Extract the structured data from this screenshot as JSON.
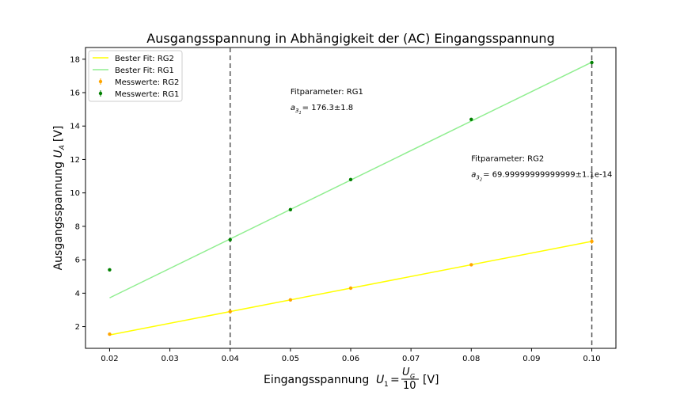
{
  "chart_data": {
    "type": "line",
    "title": "Ausgangsspannung in Abhängigkeit der (AC) Eingangsspannung",
    "xlabel": {
      "prefix": "Eingangsspannung",
      "var": "U",
      "var_sub": "1",
      "frac_num": "U",
      "frac_num_sub": "G",
      "frac_den": "10",
      "unit": "[V]"
    },
    "ylabel": {
      "prefix": "Ausgangsspannung",
      "var": "U",
      "var_sub": "A",
      "unit": "[V]"
    },
    "xlim": [
      0.016,
      0.104
    ],
    "ylim": [
      0.7,
      18.7
    ],
    "xticks": [
      0.02,
      0.03,
      0.04,
      0.05,
      0.06,
      0.07,
      0.08,
      0.09,
      0.1
    ],
    "xtick_labels": [
      "0.02",
      "0.03",
      "0.04",
      "0.05",
      "0.06",
      "0.07",
      "0.08",
      "0.09",
      "0.10"
    ],
    "yticks": [
      2,
      4,
      6,
      8,
      10,
      12,
      14,
      16,
      18
    ],
    "ytick_labels": [
      "2",
      "4",
      "6",
      "8",
      "10",
      "12",
      "14",
      "16",
      "18"
    ],
    "vlines": [
      0.04,
      0.1
    ],
    "grid": false,
    "legend_position": "top-left",
    "series": [
      {
        "name": "Bester Fit: RG2",
        "kind": "line",
        "color": "#ffff00",
        "x": [
          0.02,
          0.1
        ],
        "y": [
          1.5,
          7.1
        ]
      },
      {
        "name": "Bester Fit: RG1",
        "kind": "line",
        "color": "#90ee90",
        "x": [
          0.02,
          0.1
        ],
        "y": [
          3.72,
          17.82
        ]
      },
      {
        "name": "Messwerte: RG2",
        "kind": "errorbar",
        "color": "#ffa500",
        "x": [
          0.02,
          0.04,
          0.05,
          0.06,
          0.08,
          0.1
        ],
        "y": [
          1.55,
          2.9,
          3.6,
          4.3,
          5.7,
          7.1
        ],
        "yerr": [
          0.05,
          0.1,
          0.05,
          0.05,
          0.05,
          0.15
        ]
      },
      {
        "name": "Messwerte: RG1",
        "kind": "errorbar",
        "color": "#008000",
        "x": [
          0.02,
          0.04,
          0.05,
          0.06,
          0.08,
          0.1
        ],
        "y": [
          5.4,
          7.2,
          9.0,
          10.8,
          14.4,
          17.8
        ],
        "yerr": [
          0.05,
          0.05,
          0.05,
          0.05,
          0.05,
          0.1
        ]
      }
    ],
    "annotations": [
      {
        "x": 0.05,
        "y": 16.0,
        "line1": "Fitparameter: RG1",
        "var": "a",
        "sub": "3",
        "subsub": "1",
        "value": "= 176.3±1.8"
      },
      {
        "x": 0.08,
        "y": 12.0,
        "line1": "Fitparameter: RG2",
        "var": "a",
        "sub": "3",
        "subsub": "2",
        "value": "= 69.99999999999999±1.1e-14"
      }
    ]
  }
}
